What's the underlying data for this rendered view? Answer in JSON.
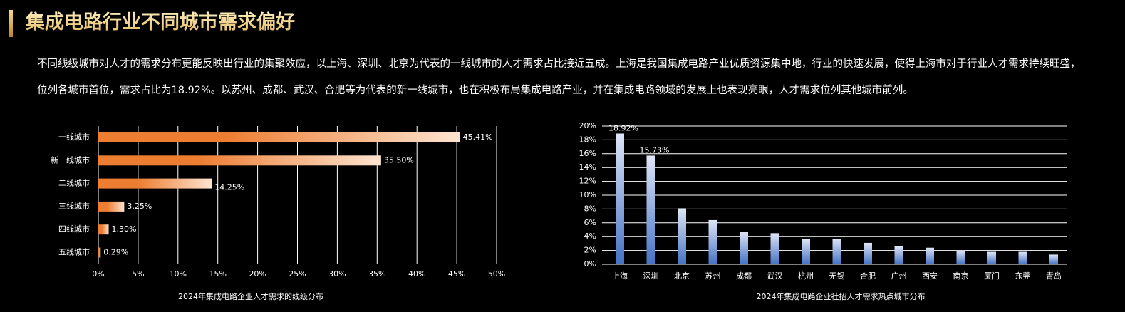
{
  "title": "集成电路行业不同城市需求偏好",
  "paragraph": "不同线级城市对人才的需求分布更能反映出行业的集聚效应，以上海、深圳、北京为代表的一线城市的人才需求占比接近五成。上海是我国集成电路产业优质资源集中地，行业的快速发展，使得上海市对于行业人才需求持续旺盛，位列各城市首位，需求占比为18.92%。以苏州、成都、武汉、合肥等为代表的新一线城市，也在积极布局集成电路产业，并在集成电路领域的发展上也表现亮眼，人才需求位列其他城市前列。",
  "chart_data": [
    {
      "type": "bar",
      "orientation": "horizontal",
      "title": "2024年集成电路企业人才需求的线级分布",
      "categories": [
        "一线城市",
        "新一线城市",
        "二线城市",
        "三线城市",
        "四线城市",
        "五线城市"
      ],
      "values": [
        45.41,
        35.5,
        14.25,
        3.25,
        1.3,
        0.29
      ],
      "value_labels": [
        "45.41%",
        "35.50%",
        "14.25%",
        "3.25%",
        "1.30%",
        "0.29%"
      ],
      "color": "#ed7d31",
      "grid": true,
      "xlim": [
        0,
        50
      ],
      "xticks": [
        {
          "value": 0,
          "label": "0%"
        },
        {
          "value": 5,
          "label": "5%"
        },
        {
          "value": 10,
          "label": "10%"
        },
        {
          "value": 15,
          "label": "15%"
        },
        {
          "value": 20,
          "label": "20%"
        },
        {
          "value": 25,
          "label": "25%"
        },
        {
          "value": 30,
          "label": "30%"
        },
        {
          "value": 35,
          "label": "35%"
        },
        {
          "value": 40,
          "label": "40%"
        },
        {
          "value": 45,
          "label": "45%"
        },
        {
          "value": 50,
          "label": "50%"
        }
      ]
    },
    {
      "type": "bar",
      "orientation": "vertical",
      "title": "2024年集成电路企业社招人才需求热点城市分布",
      "categories": [
        "上海",
        "深圳",
        "北京",
        "苏州",
        "成都",
        "武汉",
        "杭州",
        "无锡",
        "合肥",
        "广州",
        "西安",
        "南京",
        "厦门",
        "东莞",
        "青岛"
      ],
      "values": [
        18.92,
        15.73,
        8.1,
        6.4,
        4.7,
        4.5,
        3.7,
        3.7,
        3.1,
        2.6,
        2.4,
        2.0,
        1.8,
        1.8,
        1.4
      ],
      "value_labels": [
        "18.92%",
        "15.73%",
        null,
        null,
        null,
        null,
        null,
        null,
        null,
        null,
        null,
        null,
        null,
        null,
        null
      ],
      "color": "#4472c4",
      "grid": true,
      "ylim": [
        0,
        20
      ],
      "yticks": [
        {
          "value": 0,
          "label": "0%"
        },
        {
          "value": 2,
          "label": "2%"
        },
        {
          "value": 4,
          "label": "4%"
        },
        {
          "value": 6,
          "label": "6%"
        },
        {
          "value": 8,
          "label": "8%"
        },
        {
          "value": 10,
          "label": "10%"
        },
        {
          "value": 12,
          "label": "12%"
        },
        {
          "value": 14,
          "label": "14%"
        },
        {
          "value": 16,
          "label": "16%"
        },
        {
          "value": 18,
          "label": "18%"
        },
        {
          "value": 20,
          "label": "20%"
        }
      ]
    }
  ]
}
